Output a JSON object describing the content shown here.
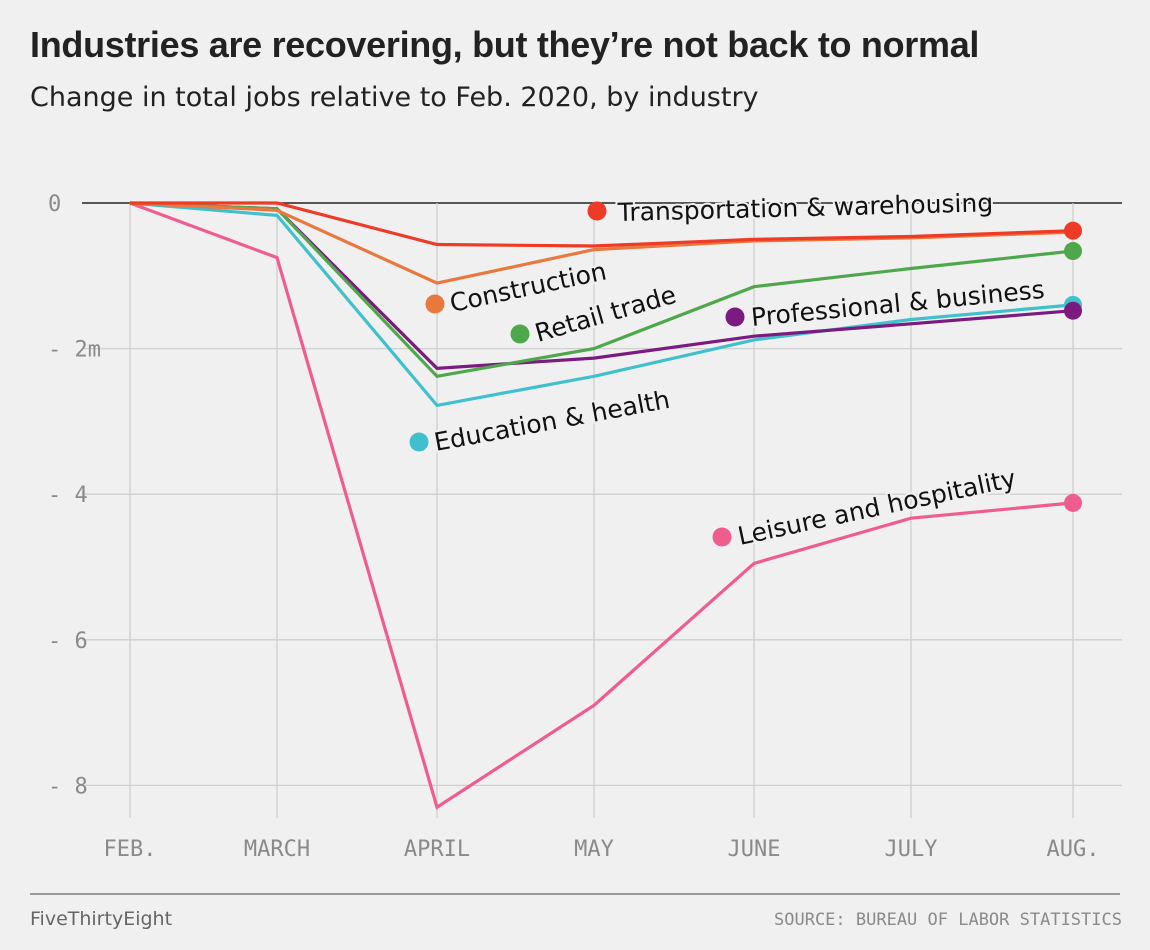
{
  "header": {
    "title": "Industries are recovering, but they’re not back to normal",
    "subtitle": "Change in total jobs relative to Feb. 2020, by industry"
  },
  "footer": {
    "brand": "FiveThirtyEight",
    "source": "SOURCE: BUREAU OF LABOR STATISTICS"
  },
  "chart_data": {
    "type": "line",
    "title": "Industries are recovering, but they’re not back to normal",
    "subtitle": "Change in total jobs relative to Feb. 2020, by industry",
    "xlabel": "",
    "ylabel": "",
    "x": [
      "FEB.",
      "MARCH",
      "APRIL",
      "MAY",
      "JUNE",
      "JULY",
      "AUG."
    ],
    "ylim": [
      -8.4,
      0.4
    ],
    "yticks": [
      0,
      -2,
      -4,
      -6,
      -8
    ],
    "ytick_labels": [
      "0",
      "-2m",
      "-4",
      "-6",
      "-8"
    ],
    "grid": true,
    "legend": "direct labels",
    "series": [
      {
        "name": "Transportation & warehousing",
        "color": "#ed3b26",
        "values": [
          0,
          0,
          -0.57,
          -0.59,
          -0.5,
          -0.46,
          -0.38
        ]
      },
      {
        "name": "Construction",
        "color": "#e9783f",
        "values": [
          0,
          -0.1,
          -1.1,
          -0.64,
          -0.52,
          -0.48,
          -0.4
        ]
      },
      {
        "name": "Retail trade",
        "color": "#4ea84b",
        "values": [
          0,
          -0.08,
          -2.38,
          -2.0,
          -1.15,
          -0.9,
          -0.66
        ]
      },
      {
        "name": "Professional & business",
        "color": "#7b1a7f",
        "values": [
          0,
          -0.08,
          -2.27,
          -2.13,
          -1.83,
          -1.66,
          -1.48
        ]
      },
      {
        "name": "Education & health",
        "color": "#40c0cc",
        "values": [
          0,
          -0.17,
          -2.78,
          -2.38,
          -1.88,
          -1.6,
          -1.4
        ]
      },
      {
        "name": "Leisure and hospitality",
        "color": "#ef5d8e",
        "values": [
          0,
          -0.75,
          -8.3,
          -6.9,
          -4.95,
          -4.33,
          -4.12
        ]
      }
    ]
  }
}
